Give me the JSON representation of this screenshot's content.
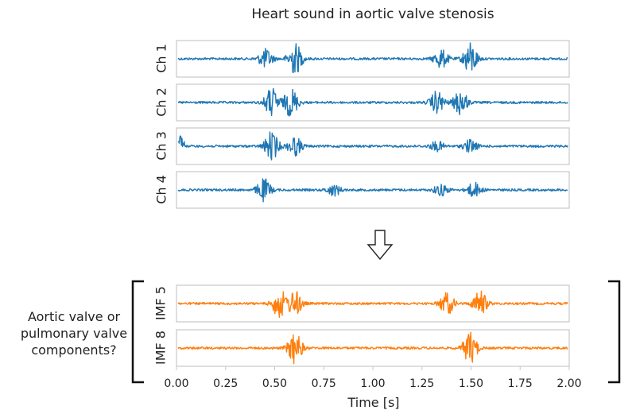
{
  "title": "Heart sound in aortic valve stenosis",
  "question": [
    "Aortic valve or",
    "pulmonary valve",
    "components?"
  ],
  "colors": {
    "blue": "#1f77b4",
    "orange": "#ff7f0e",
    "frame": "#c8c8c8",
    "bracket": "#111111"
  },
  "arrow_icon": "hollow-down-arrow-icon",
  "chart_data": [
    {
      "type": "line",
      "title": "Heart sound in aortic valve stenosis",
      "xlabel": "",
      "ylabel": "",
      "xlim": [
        0,
        2.0
      ],
      "panels": [
        {
          "name": "Ch 1",
          "color": "#1f77b4",
          "bursts": [
            {
              "t": 0.45,
              "amp": 0.6
            },
            {
              "t": 0.6,
              "amp": 1.0
            },
            {
              "t": 1.35,
              "amp": 0.6
            },
            {
              "t": 1.5,
              "amp": 1.0
            }
          ]
        },
        {
          "name": "Ch 2",
          "color": "#1f77b4",
          "bursts": [
            {
              "t": 0.48,
              "amp": 0.9
            },
            {
              "t": 0.58,
              "amp": 0.9
            },
            {
              "t": 1.33,
              "amp": 0.7
            },
            {
              "t": 1.45,
              "amp": 0.8
            }
          ]
        },
        {
          "name": "Ch 3",
          "color": "#1f77b4",
          "bursts": [
            {
              "t": 0.48,
              "amp": 0.9
            },
            {
              "t": 0.6,
              "amp": 0.6
            },
            {
              "t": 1.33,
              "amp": 0.3
            },
            {
              "t": 1.5,
              "amp": 0.4
            }
          ]
        },
        {
          "name": "Ch 4",
          "color": "#1f77b4",
          "bursts": [
            {
              "t": 0.44,
              "amp": 0.7
            },
            {
              "t": 0.8,
              "amp": 0.35
            },
            {
              "t": 1.35,
              "amp": 0.35
            },
            {
              "t": 1.52,
              "amp": 0.45
            }
          ]
        }
      ]
    },
    {
      "type": "line",
      "xlabel": "Time [s]",
      "xlim": [
        0,
        2.0
      ],
      "xticks": [
        "0.00",
        "0.25",
        "0.50",
        "0.75",
        "1.00",
        "1.25",
        "1.50",
        "1.75",
        "2.00"
      ],
      "xtick_values": [
        0,
        0.25,
        0.5,
        0.75,
        1.0,
        1.25,
        1.5,
        1.75,
        2.0
      ],
      "panels": [
        {
          "name": "IMF 5",
          "color": "#ff7f0e",
          "bursts": [
            {
              "t": 0.52,
              "amp": 0.9
            },
            {
              "t": 0.6,
              "amp": 0.8
            },
            {
              "t": 1.38,
              "amp": 0.7
            },
            {
              "t": 1.55,
              "amp": 0.8
            }
          ]
        },
        {
          "name": "IMF 8",
          "color": "#ff7f0e",
          "bursts": [
            {
              "t": 0.6,
              "amp": 1.0
            },
            {
              "t": 1.5,
              "amp": 1.0
            }
          ]
        }
      ]
    }
  ]
}
